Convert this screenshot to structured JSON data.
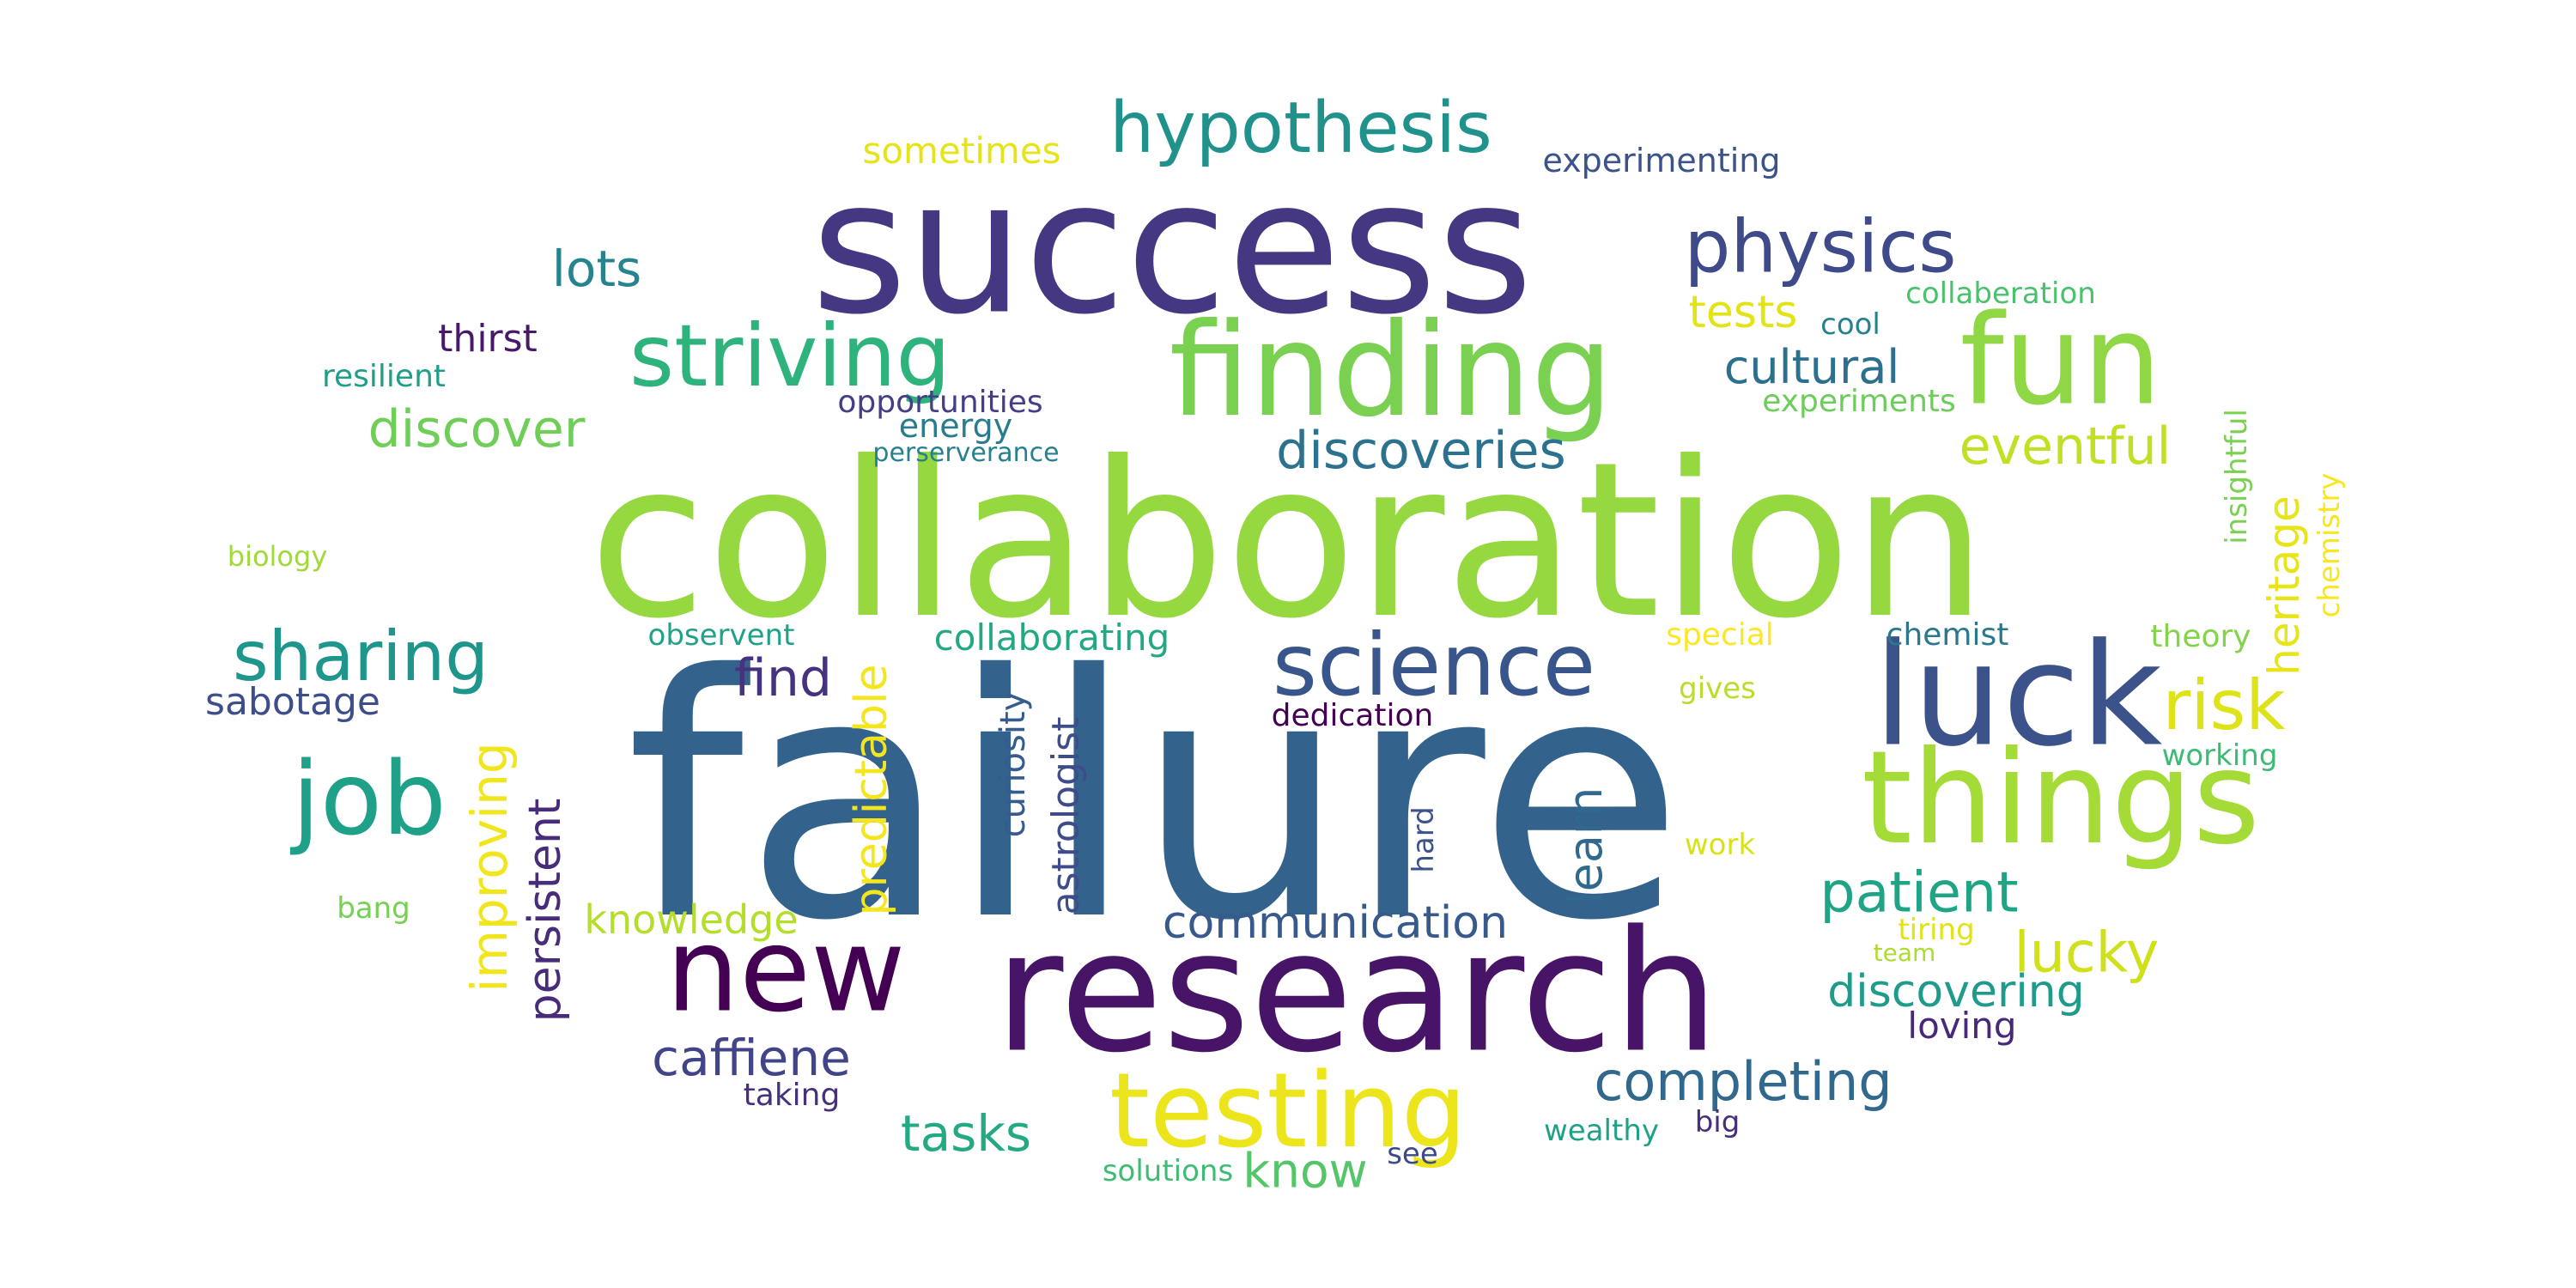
{
  "words": [
    {
      "text": "failure",
      "color": "#33638d",
      "vertical": false
    },
    {
      "text": "collaboration",
      "color": "#95d840",
      "vertical": false
    },
    {
      "text": "success",
      "color": "#453781",
      "vertical": false
    },
    {
      "text": "research",
      "color": "#481467",
      "vertical": false
    },
    {
      "text": "luck",
      "color": "#3b528b",
      "vertical": false
    },
    {
      "text": "finding",
      "color": "#7ad151",
      "vertical": false
    },
    {
      "text": "things",
      "color": "#a5db36",
      "vertical": false
    },
    {
      "text": "fun",
      "color": "#8fd744",
      "vertical": false
    },
    {
      "text": "new",
      "color": "#440154",
      "vertical": false
    },
    {
      "text": "testing",
      "color": "#ece51b",
      "vertical": false
    },
    {
      "text": "science",
      "color": "#39568c",
      "vertical": false
    },
    {
      "text": "striving",
      "color": "#2eb37c",
      "vertical": false
    },
    {
      "text": "hypothesis",
      "color": "#21918c",
      "vertical": false
    },
    {
      "text": "job",
      "color": "#1fa088",
      "vertical": false
    },
    {
      "text": "physics",
      "color": "#3e4a89",
      "vertical": false
    },
    {
      "text": "sharing",
      "color": "#1f968b",
      "vertical": false
    },
    {
      "text": "risk",
      "color": "#dde318",
      "vertical": false
    },
    {
      "text": "lucky",
      "color": "#d0e11c",
      "vertical": false
    },
    {
      "text": "patient",
      "color": "#20a486",
      "vertical": false
    },
    {
      "text": "discoveries",
      "color": "#2c728e",
      "vertical": false
    },
    {
      "text": "completing",
      "color": "#31688e",
      "vertical": false
    },
    {
      "text": "eventful",
      "color": "#c2df23",
      "vertical": false
    },
    {
      "text": "communication",
      "color": "#38598c",
      "vertical": false
    },
    {
      "text": "discover",
      "color": "#6ece58",
      "vertical": false
    },
    {
      "text": "caffiene",
      "color": "#414487",
      "vertical": false
    },
    {
      "text": "discovering",
      "color": "#1e9b8a",
      "vertical": false
    },
    {
      "text": "lots",
      "color": "#25848e",
      "vertical": false
    },
    {
      "text": "cultural",
      "color": "#2d708e",
      "vertical": false
    },
    {
      "text": "tasks",
      "color": "#23a983",
      "vertical": false
    },
    {
      "text": "find",
      "color": "#46327e",
      "vertical": false
    },
    {
      "text": "know",
      "color": "#54c568",
      "vertical": false
    },
    {
      "text": "tests",
      "color": "#e2e418",
      "vertical": false
    },
    {
      "text": "knowledge",
      "color": "#b5de2b",
      "vertical": false
    },
    {
      "text": "thirst",
      "color": "#48186a",
      "vertical": false
    },
    {
      "text": "sabotage",
      "color": "#3d4e8a",
      "vertical": false
    },
    {
      "text": "sometimes",
      "color": "#e5e419",
      "vertical": false
    },
    {
      "text": "experimenting",
      "color": "#3b528b",
      "vertical": false
    },
    {
      "text": "loving",
      "color": "#482878",
      "vertical": false
    },
    {
      "text": "collaborating",
      "color": "#22a884",
      "vertical": false
    },
    {
      "text": "opportunities",
      "color": "#433e85",
      "vertical": false
    },
    {
      "text": "dedication",
      "color": "#440154",
      "vertical": false
    },
    {
      "text": "resilient",
      "color": "#1f9e89",
      "vertical": false
    },
    {
      "text": "energy",
      "color": "#287c8e",
      "vertical": false
    },
    {
      "text": "observent",
      "color": "#1fa287",
      "vertical": false
    },
    {
      "text": "collaberation",
      "color": "#4ac16d",
      "vertical": false
    },
    {
      "text": "experiments",
      "color": "#6ccd5a",
      "vertical": false
    },
    {
      "text": "chemist",
      "color": "#2a788e",
      "vertical": false
    },
    {
      "text": "theory",
      "color": "#84d44b",
      "vertical": false
    },
    {
      "text": "working",
      "color": "#3bbb75",
      "vertical": false
    },
    {
      "text": "special",
      "color": "#fde725",
      "vertical": false
    },
    {
      "text": "gives",
      "color": "#b8de29",
      "vertical": false
    },
    {
      "text": "cool",
      "color": "#26828e",
      "vertical": false
    },
    {
      "text": "wealthy",
      "color": "#1fa188",
      "vertical": false
    },
    {
      "text": "work",
      "color": "#d8e219",
      "vertical": false
    },
    {
      "text": "taking",
      "color": "#46307e",
      "vertical": false
    },
    {
      "text": "solutions",
      "color": "#3dbc74",
      "vertical": false
    },
    {
      "text": "tiring",
      "color": "#dfe318",
      "vertical": false
    },
    {
      "text": "team",
      "color": "#addc30",
      "vertical": false
    },
    {
      "text": "perserverance",
      "color": "#26818e",
      "vertical": false
    },
    {
      "text": "biology",
      "color": "#a0da39",
      "vertical": false
    },
    {
      "text": "bang",
      "color": "#75d054",
      "vertical": false
    },
    {
      "text": "see",
      "color": "#3e4989",
      "vertical": false
    },
    {
      "text": "big",
      "color": "#472d7b",
      "vertical": false
    },
    {
      "text": "improving",
      "color": "#f1e51d",
      "vertical": true
    },
    {
      "text": "persistent",
      "color": "#472c7a",
      "vertical": true
    },
    {
      "text": "predictable",
      "color": "#f4e61e",
      "vertical": true
    },
    {
      "text": "curiosity",
      "color": "#365c8d",
      "vertical": true
    },
    {
      "text": "astrologist",
      "color": "#3e4c8a",
      "vertical": true
    },
    {
      "text": "hard",
      "color": "#3b528b",
      "vertical": true
    },
    {
      "text": "learn",
      "color": "#31688e",
      "vertical": true
    },
    {
      "text": "insightful",
      "color": "#7ad151",
      "vertical": true
    },
    {
      "text": "heritage",
      "color": "#e7e419",
      "vertical": true
    },
    {
      "text": "chemistry",
      "color": "#f8e621",
      "vertical": true
    }
  ]
}
